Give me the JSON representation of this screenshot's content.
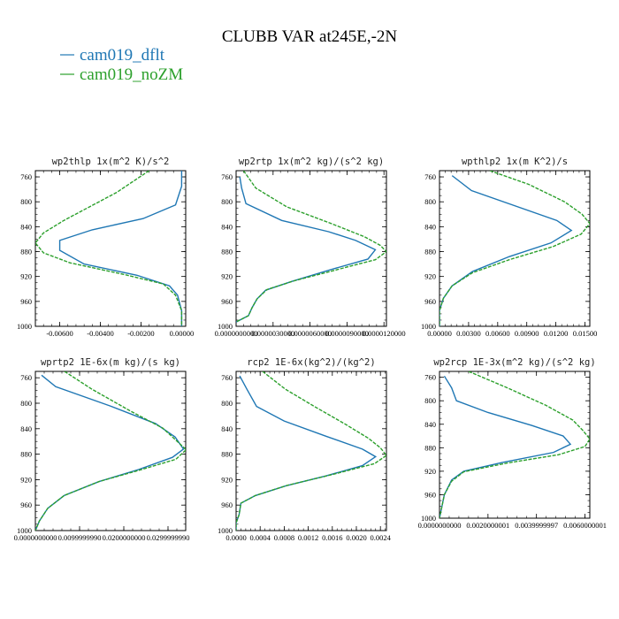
{
  "title": "CLUBB VAR at245E,-2N",
  "legend": [
    {
      "label": "cam019_dflt",
      "color": "#1f77b4"
    },
    {
      "label": "cam019_noZM",
      "color": "#2ca02c"
    }
  ],
  "chart_data": [
    {
      "type": "line",
      "title": "wp2thlp   1x(m^2 K)/s^2",
      "y_reversed": true,
      "ylim": [
        1000,
        750
      ],
      "xlim": [
        -0.0072,
        0.0002
      ],
      "yticks": [
        "760",
        "800",
        "840",
        "880",
        "920",
        "960",
        "1000"
      ],
      "xticks": [
        "-0.00600",
        "-0.00400",
        "-0.00200",
        "0.00000"
      ],
      "xtick_values": [
        -0.006,
        -0.004,
        -0.002,
        0.0
      ],
      "series": [
        {
          "name": "cam019_dflt",
          "color": "#1f77b4",
          "points": [
            [
              0.0,
              750
            ],
            [
              0.0,
              775
            ],
            [
              -0.0003,
              805
            ],
            [
              -0.0019,
              827
            ],
            [
              -0.0044,
              845
            ],
            [
              -0.006,
              862
            ],
            [
              -0.006,
              878
            ],
            [
              -0.0048,
              900
            ],
            [
              -0.0022,
              918
            ],
            [
              -0.0006,
              935
            ],
            [
              -0.0002,
              950
            ],
            [
              0.0,
              975
            ],
            [
              0.0,
              1000
            ]
          ]
        },
        {
          "name": "cam019_noZM",
          "color": "#2ca02c",
          "points": [
            [
              -0.0016,
              750
            ],
            [
              -0.0032,
              785
            ],
            [
              -0.0058,
              830
            ],
            [
              -0.0068,
              850
            ],
            [
              -0.0072,
              866
            ],
            [
              -0.0068,
              882
            ],
            [
              -0.0055,
              898
            ],
            [
              -0.0028,
              917
            ],
            [
              -0.0009,
              932
            ],
            [
              -0.0003,
              950
            ],
            [
              0.0,
              975
            ],
            [
              0.0,
              1000
            ]
          ]
        }
      ]
    },
    {
      "type": "line",
      "title": "wp2rtp   1x(m^2 kg)/(s^2 kg)",
      "y_reversed": true,
      "ylim": [
        1000,
        750
      ],
      "xlim": [
        0.0,
        1.22e-05
      ],
      "yticks": [
        "760",
        "800",
        "840",
        "880",
        "920",
        "960",
        "1000"
      ],
      "xticks": [
        "0.0000000000",
        "0.0000030000",
        "0.0000060000",
        "0.0000090000",
        "0.0000120000"
      ],
      "xtick_values": [
        0.0,
        3e-06,
        6e-06,
        9e-06,
        1.2e-05
      ],
      "series": [
        {
          "name": "cam019_dflt",
          "color": "#1f77b4",
          "points": [
            [
              3e-07,
              760
            ],
            [
              4.5e-07,
              778
            ],
            [
              8e-07,
              803
            ],
            [
              3.7e-06,
              830
            ],
            [
              7.5e-06,
              848
            ],
            [
              9.7e-06,
              862
            ],
            [
              1.13e-05,
              877
            ],
            [
              1.07e-05,
              892
            ],
            [
              7.5e-06,
              910
            ],
            [
              4.5e-06,
              928
            ],
            [
              2.4e-06,
              942
            ],
            [
              1.7e-06,
              956
            ],
            [
              1.3e-06,
              970
            ],
            [
              1e-06,
              983
            ],
            [
              0.0,
              993
            ]
          ]
        },
        {
          "name": "cam019_noZM",
          "color": "#2ca02c",
          "points": [
            [
              6e-07,
              750
            ],
            [
              1.6e-06,
              778
            ],
            [
              4.1e-06,
              808
            ],
            [
              7.6e-06,
              834
            ],
            [
              1.04e-05,
              856
            ],
            [
              1.17e-05,
              870
            ],
            [
              1.22e-05,
              880
            ],
            [
              1.13e-05,
              893
            ],
            [
              8e-06,
              910
            ],
            [
              4.7e-06,
              927
            ],
            [
              2.5e-06,
              941
            ],
            [
              1.7e-06,
              956
            ],
            [
              1.3e-06,
              970
            ],
            [
              1e-06,
              983
            ],
            [
              0.0,
              993
            ]
          ]
        }
      ]
    },
    {
      "type": "line",
      "title": "wpthlp2   1x(m K^2)/s",
      "y_reversed": true,
      "ylim": [
        1000,
        750
      ],
      "xlim": [
        0.0,
        0.0155
      ],
      "yticks": [
        "760",
        "800",
        "840",
        "880",
        "920",
        "960",
        "1000"
      ],
      "xticks": [
        "0.00000",
        "0.00300",
        "0.00600",
        "0.00900",
        "0.01200",
        "0.01500"
      ],
      "xtick_values": [
        0.0,
        0.003,
        0.006,
        0.009,
        0.012,
        0.015
      ],
      "series": [
        {
          "name": "cam019_dflt",
          "color": "#1f77b4",
          "points": [
            [
              0.0013,
              758
            ],
            [
              0.0033,
              782
            ],
            [
              0.0121,
              830
            ],
            [
              0.0136,
              846
            ],
            [
              0.0115,
              866
            ],
            [
              0.0072,
              888
            ],
            [
              0.0034,
              912
            ],
            [
              0.0013,
              935
            ],
            [
              0.0004,
              955
            ],
            [
              0.0,
              975
            ],
            [
              0.0,
              1000
            ]
          ]
        },
        {
          "name": "cam019_noZM",
          "color": "#2ca02c",
          "points": [
            [
              0.0052,
              750
            ],
            [
              0.0092,
              772
            ],
            [
              0.0129,
              800
            ],
            [
              0.0147,
              820
            ],
            [
              0.0155,
              835
            ],
            [
              0.0146,
              852
            ],
            [
              0.0117,
              872
            ],
            [
              0.0072,
              893
            ],
            [
              0.0034,
              914
            ],
            [
              0.0013,
              935
            ],
            [
              0.0004,
              955
            ],
            [
              0.0,
              975
            ],
            [
              0.0,
              1000
            ]
          ]
        }
      ]
    },
    {
      "type": "line",
      "title": "wprtp2   1E-6x(m kg)/(s kg)",
      "y_reversed": true,
      "ylim": [
        1000,
        750
      ],
      "xlim": [
        0.0,
        0.034
      ],
      "yticks": [
        "760",
        "800",
        "840",
        "880",
        "920",
        "960",
        "1000"
      ],
      "xticks": [
        "0.0000000000",
        "0.0099999990",
        "0.0200000000",
        "0.0299999990"
      ],
      "xtick_values": [
        0.0,
        0.01,
        0.02,
        0.03
      ],
      "series": [
        {
          "name": "cam019_dflt",
          "color": "#1f77b4",
          "points": [
            [
              0.0014,
              756
            ],
            [
              0.0046,
              774
            ],
            [
              0.0168,
              804
            ],
            [
              0.0272,
              832
            ],
            [
              0.0316,
              853
            ],
            [
              0.0335,
              872
            ],
            [
              0.031,
              885
            ],
            [
              0.0234,
              904
            ],
            [
              0.0144,
              923
            ],
            [
              0.0065,
              945
            ],
            [
              0.0028,
              965
            ],
            [
              0.0009,
              985
            ],
            [
              0.0,
              1000
            ]
          ]
        },
        {
          "name": "cam019_noZM",
          "color": "#2ca02c",
          "points": [
            [
              0.0066,
              750
            ],
            [
              0.0128,
              778
            ],
            [
              0.0217,
              813
            ],
            [
              0.0288,
              839
            ],
            [
              0.0321,
              860
            ],
            [
              0.0341,
              873
            ],
            [
              0.0318,
              888
            ],
            [
              0.0236,
              905
            ],
            [
              0.0144,
              923
            ],
            [
              0.0065,
              945
            ],
            [
              0.0028,
              965
            ],
            [
              0.0009,
              985
            ],
            [
              0.0,
              1000
            ]
          ]
        }
      ]
    },
    {
      "type": "line",
      "title": "rcp2   1E-6x(kg^2)/(kg^2)",
      "y_reversed": true,
      "ylim": [
        1000,
        750
      ],
      "xlim": [
        0.0,
        0.0025
      ],
      "yticks": [
        "760",
        "800",
        "840",
        "880",
        "920",
        "960",
        "1000"
      ],
      "xticks": [
        "0.0000",
        "0.0004",
        "0.0008",
        "0.0012",
        "0.0016",
        "0.0020",
        "0.0024"
      ],
      "xtick_values": [
        0.0,
        0.0004,
        0.0008,
        0.0012,
        0.0016,
        0.002,
        0.0024
      ],
      "series": [
        {
          "name": "cam019_dflt",
          "color": "#1f77b4",
          "points": [
            [
              6e-05,
              757
            ],
            [
              0.00018,
              778
            ],
            [
              0.00034,
              805
            ],
            [
              0.0008,
              828
            ],
            [
              0.0015,
              852
            ],
            [
              0.0021,
              872
            ],
            [
              0.00232,
              884
            ],
            [
              0.0021,
              898
            ],
            [
              0.0015,
              914
            ],
            [
              0.00082,
              930
            ],
            [
              0.00032,
              945
            ],
            [
              8e-05,
              957
            ],
            [
              5e-05,
              975
            ],
            [
              0.0,
              988
            ],
            [
              0.0,
              1000
            ]
          ]
        },
        {
          "name": "cam019_noZM",
          "color": "#2ca02c",
          "points": [
            [
              0.00044,
              750
            ],
            [
              0.00082,
              778
            ],
            [
              0.0013,
              805
            ],
            [
              0.0018,
              832
            ],
            [
              0.0022,
              855
            ],
            [
              0.0024,
              870
            ],
            [
              0.0025,
              882
            ],
            [
              0.0023,
              895
            ],
            [
              0.0016,
              912
            ],
            [
              0.00085,
              929
            ],
            [
              0.00032,
              945
            ],
            [
              8e-05,
              957
            ],
            [
              5e-05,
              975
            ],
            [
              0.0,
              988
            ],
            [
              0.0,
              1000
            ]
          ]
        }
      ]
    },
    {
      "type": "line",
      "title": "wp2rcp   1E-3x(m^2 kg)/(s^2 kg)",
      "y_reversed": true,
      "ylim": [
        1000,
        750
      ],
      "xlim": [
        0.0,
        0.0062
      ],
      "yticks": [
        "760",
        "800",
        "840",
        "880",
        "920",
        "960",
        "1000"
      ],
      "xticks": [
        "0.0000000000",
        "0.0020000001",
        "0.0039999997",
        "0.0060000001"
      ],
      "xtick_values": [
        0.0,
        0.002,
        0.004,
        0.006
      ],
      "series": [
        {
          "name": "cam019_dflt",
          "color": "#1f77b4",
          "points": [
            [
              0.0002,
              758
            ],
            [
              0.0005,
              778
            ],
            [
              0.0007,
              800
            ],
            [
              0.002,
              820
            ],
            [
              0.0038,
              842
            ],
            [
              0.0051,
              860
            ],
            [
              0.0054,
              874
            ],
            [
              0.0047,
              888
            ],
            [
              0.0026,
              905
            ],
            [
              0.001,
              920
            ],
            [
              0.0005,
              935
            ],
            [
              0.0002,
              960
            ],
            [
              0.0,
              1000
            ]
          ]
        },
        {
          "name": "cam019_noZM",
          "color": "#2ca02c",
          "points": [
            [
              0.0012,
              750
            ],
            [
              0.0028,
              778
            ],
            [
              0.0044,
              808
            ],
            [
              0.0055,
              833
            ],
            [
              0.0059,
              850
            ],
            [
              0.0062,
              865
            ],
            [
              0.006,
              878
            ],
            [
              0.0049,
              892
            ],
            [
              0.0028,
              906
            ],
            [
              0.001,
              921
            ],
            [
              0.0005,
              937
            ],
            [
              0.0002,
              960
            ],
            [
              0.0,
              1000
            ]
          ]
        }
      ]
    }
  ]
}
